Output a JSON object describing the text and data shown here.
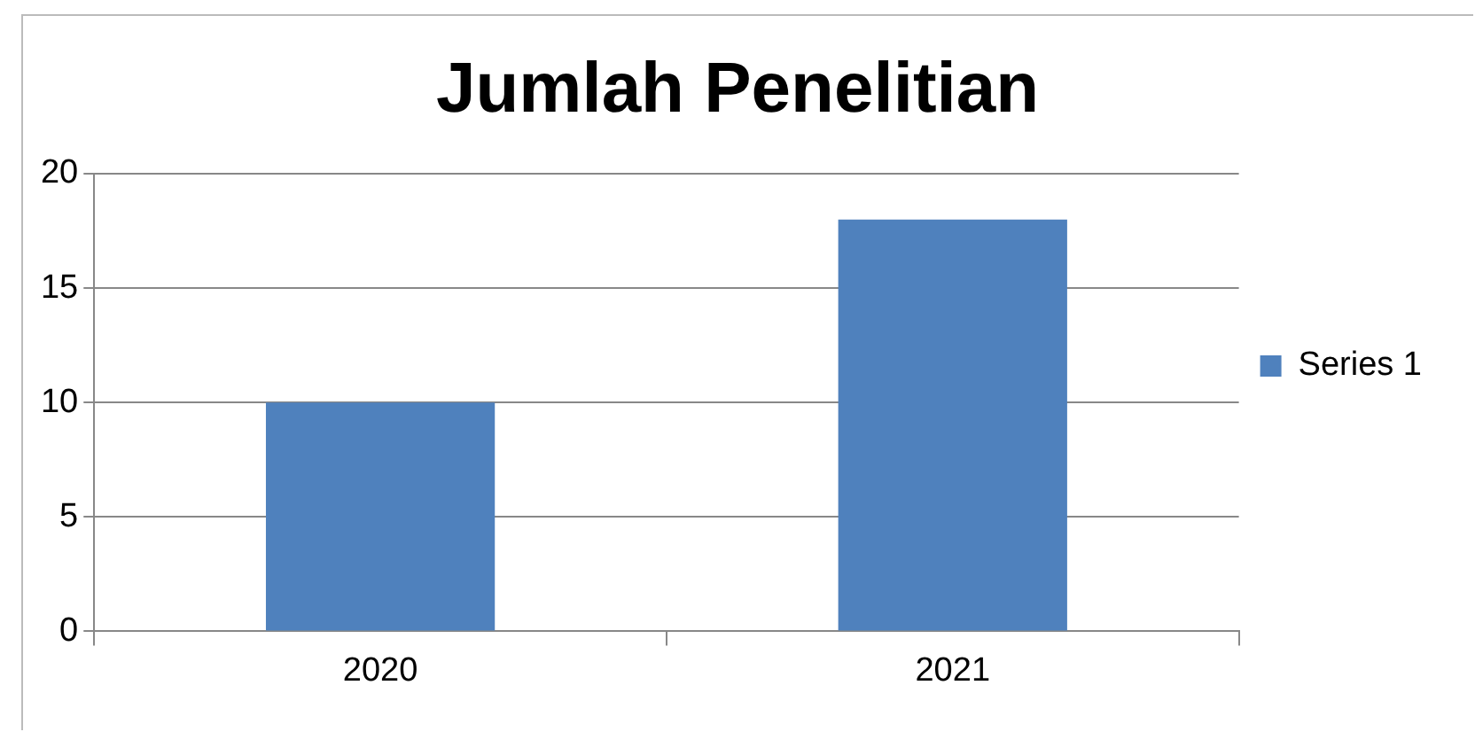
{
  "chart_data": {
    "type": "bar",
    "title": "Jumlah Penelitian",
    "categories": [
      "2020",
      "2021"
    ],
    "series": [
      {
        "name": "Series 1",
        "color": "#4f81bd",
        "values": [
          10,
          18
        ]
      }
    ],
    "ylim": [
      0,
      20
    ],
    "yticks": [
      0,
      5,
      10,
      15,
      20
    ],
    "grid": "y",
    "legend": "right"
  }
}
